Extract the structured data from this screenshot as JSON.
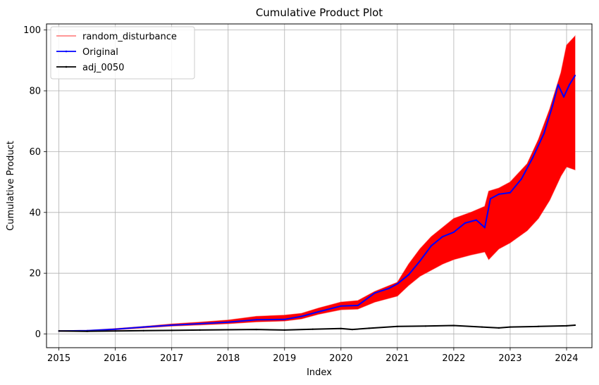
{
  "chart_data": {
    "type": "line",
    "title": "Cumulative Product Plot",
    "xlabel": "Index",
    "ylabel": "Cumulative Product",
    "xlim": [
      2014.78,
      2024.45
    ],
    "ylim": [
      -4.5,
      102
    ],
    "x_ticks": [
      2015,
      2016,
      2017,
      2018,
      2019,
      2020,
      2021,
      2022,
      2023,
      2024
    ],
    "x_tick_labels": [
      "2015",
      "2016",
      "2017",
      "2018",
      "2019",
      "2020",
      "2021",
      "2022",
      "2023",
      "2024"
    ],
    "y_ticks": [
      0,
      20,
      40,
      60,
      80,
      100
    ],
    "y_tick_labels": [
      "0",
      "20",
      "40",
      "60",
      "80",
      "100"
    ],
    "grid": true,
    "legend_position": "upper-left",
    "colors": {
      "random": "#ff0000",
      "original": "#0000ff",
      "adj": "#000000"
    },
    "series": [
      {
        "name": "random_disturbance",
        "kind": "band",
        "x": [
          2015.0,
          2015.5,
          2016.0,
          2016.5,
          2017.0,
          2017.5,
          2018.0,
          2018.5,
          2019.0,
          2019.3,
          2019.6,
          2020.0,
          2020.3,
          2020.6,
          2021.0,
          2021.2,
          2021.4,
          2021.6,
          2021.8,
          2022.0,
          2022.3,
          2022.55,
          2022.62,
          2022.8,
          2023.0,
          2023.3,
          2023.5,
          2023.7,
          2023.9,
          2024.0,
          2024.15
        ],
        "lower": [
          0.9,
          0.9,
          1.4,
          2.0,
          2.6,
          3.0,
          3.4,
          4.0,
          4.3,
          5.0,
          6.5,
          8.0,
          8.2,
          10.5,
          12.5,
          16.0,
          19.0,
          21.0,
          23.0,
          24.5,
          26.0,
          27.0,
          24.5,
          28.0,
          30.0,
          34.0,
          38.0,
          44.0,
          52.0,
          55.0,
          54.0
        ],
        "upper": [
          1.1,
          1.2,
          1.8,
          2.5,
          3.3,
          3.9,
          4.6,
          5.8,
          6.2,
          6.8,
          8.5,
          10.5,
          11.0,
          14.0,
          17.0,
          23.0,
          28.0,
          32.0,
          35.0,
          38.0,
          40.0,
          42.0,
          47.0,
          48.0,
          50.0,
          56.0,
          64.0,
          74.0,
          86.0,
          95.0,
          98.0
        ]
      },
      {
        "name": "Original",
        "kind": "line",
        "x": [
          2015.0,
          2015.5,
          2016.0,
          2016.5,
          2017.0,
          2017.5,
          2018.0,
          2018.5,
          2019.0,
          2019.3,
          2019.6,
          2020.0,
          2020.3,
          2020.6,
          2020.85,
          2021.0,
          2021.2,
          2021.4,
          2021.6,
          2021.8,
          2022.0,
          2022.2,
          2022.4,
          2022.55,
          2022.65,
          2022.8,
          2023.0,
          2023.2,
          2023.4,
          2023.6,
          2023.75,
          2023.85,
          2023.95,
          2024.05,
          2024.15
        ],
        "y": [
          1.0,
          1.1,
          1.6,
          2.3,
          2.9,
          3.4,
          3.9,
          4.7,
          4.8,
          5.8,
          7.3,
          9.2,
          9.4,
          13.5,
          15.0,
          16.5,
          19.5,
          24.0,
          29.0,
          32.0,
          33.5,
          36.5,
          37.5,
          35.0,
          44.5,
          46.0,
          46.5,
          51.0,
          58.0,
          66.0,
          75.0,
          82.0,
          78.0,
          82.0,
          85.0
        ]
      },
      {
        "name": "adj_0050",
        "kind": "line",
        "x": [
          2015.0,
          2015.5,
          2016.0,
          2016.5,
          2017.0,
          2017.5,
          2018.0,
          2018.5,
          2019.0,
          2019.5,
          2020.0,
          2020.2,
          2020.5,
          2021.0,
          2021.5,
          2022.0,
          2022.5,
          2022.8,
          2023.0,
          2023.5,
          2024.0,
          2024.15
        ],
        "y": [
          1.0,
          0.9,
          1.0,
          1.1,
          1.2,
          1.3,
          1.4,
          1.5,
          1.3,
          1.6,
          1.8,
          1.5,
          1.9,
          2.5,
          2.6,
          2.8,
          2.3,
          2.0,
          2.3,
          2.5,
          2.7,
          2.9
        ]
      }
    ]
  }
}
